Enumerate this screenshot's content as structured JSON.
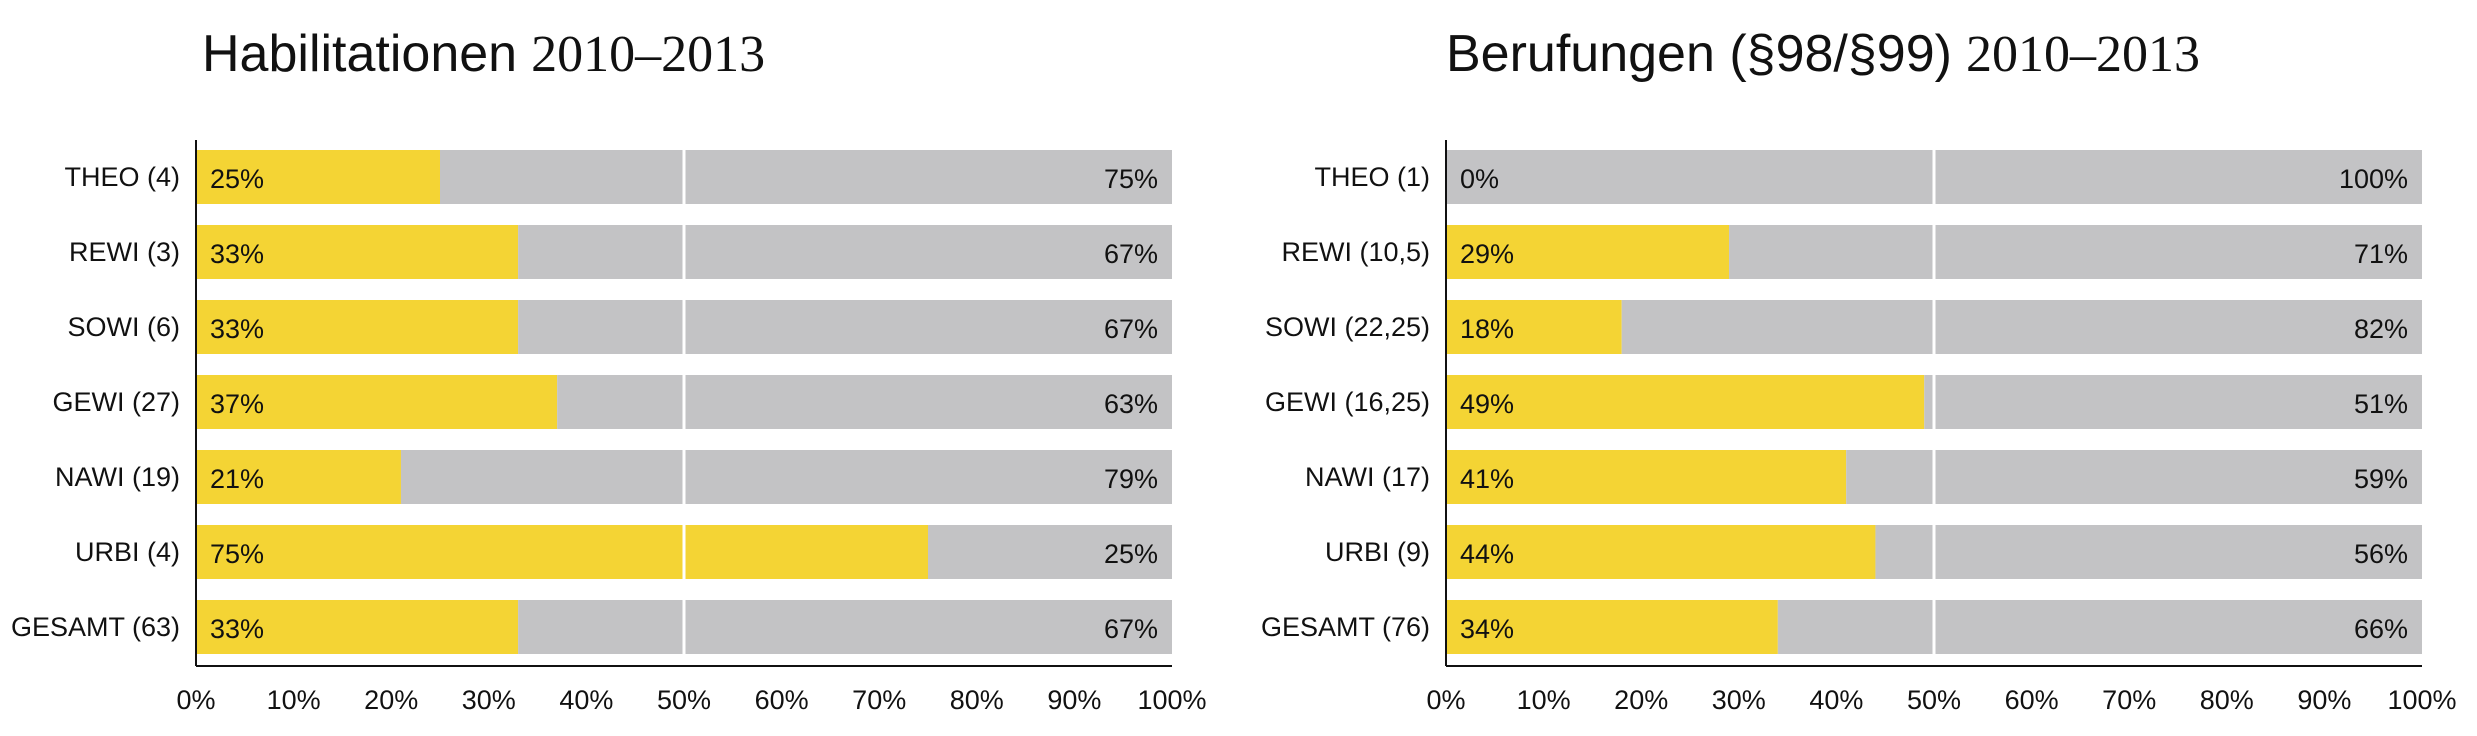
{
  "colors": {
    "share_a": "#F4D434",
    "share_b": "#C3C3C5",
    "gridline": "#FFFFFF",
    "axis": "#111111"
  },
  "chart_data": [
    {
      "type": "bar",
      "orientation": "horizontal",
      "stacked": true,
      "title": "Habilitationen",
      "subtitle": "2010–2013",
      "categories": [
        "THEO (4)",
        "REWI (3)",
        "SOWI (6)",
        "GEWI (27)",
        "NAWI (19)",
        "URBI (4)",
        "GESAMT (63)"
      ],
      "series": [
        {
          "values": [
            25,
            33,
            33,
            37,
            21,
            75,
            33
          ],
          "labels": [
            "25%",
            "33%",
            "33%",
            "37%",
            "21%",
            "75%",
            "33%"
          ]
        },
        {
          "values": [
            75,
            67,
            67,
            63,
            79,
            25,
            67
          ],
          "labels": [
            "75%",
            "67%",
            "67%",
            "63%",
            "79%",
            "25%",
            "67%"
          ]
        }
      ],
      "xlim": [
        0,
        100
      ],
      "xticks": [
        "0%",
        "10%",
        "20%",
        "30%",
        "40%",
        "50%",
        "60%",
        "70%",
        "80%",
        "90%",
        "100%"
      ],
      "gridlines": [
        50
      ]
    },
    {
      "type": "bar",
      "orientation": "horizontal",
      "stacked": true,
      "title": "Berufungen (§98/§99)",
      "subtitle": "2010–2013",
      "categories": [
        "THEO (1)",
        "REWI (10,5)",
        "SOWI (22,25)",
        "GEWI (16,25)",
        "NAWI (17)",
        "URBI (9)",
        "GESAMT (76)"
      ],
      "series": [
        {
          "values": [
            0,
            29,
            18,
            49,
            41,
            44,
            34
          ],
          "labels": [
            "0%",
            "29%",
            "18%",
            "49%",
            "41%",
            "44%",
            "34%"
          ]
        },
        {
          "values": [
            100,
            71,
            82,
            51,
            59,
            56,
            66
          ],
          "labels": [
            "100%",
            "71%",
            "82%",
            "51%",
            "59%",
            "56%",
            "66%"
          ]
        }
      ],
      "xlim": [
        0,
        100
      ],
      "xticks": [
        "0%",
        "10%",
        "20%",
        "30%",
        "40%",
        "50%",
        "60%",
        "70%",
        "80%",
        "90%",
        "100%"
      ],
      "gridlines": [
        50
      ]
    }
  ]
}
